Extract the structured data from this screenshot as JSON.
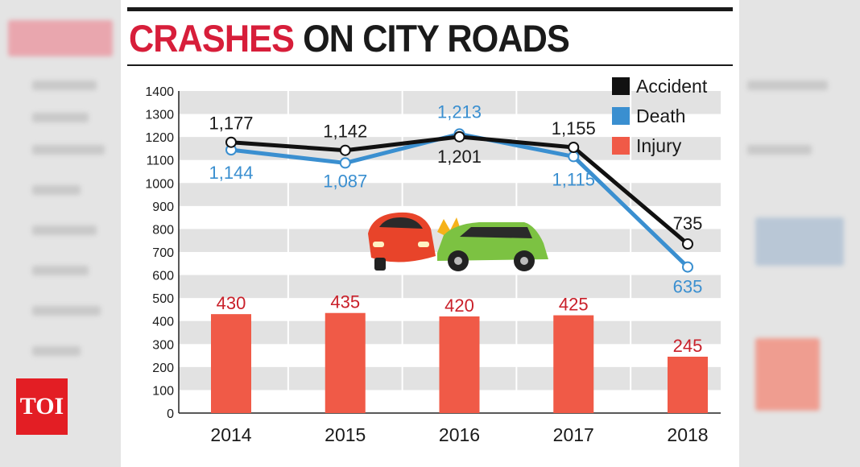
{
  "logo": "TOI",
  "title": {
    "part1": "CRASHES",
    "part2": " ON CITY ROADS"
  },
  "colors": {
    "accident": "#111111",
    "death": "#3a8fd0",
    "injury": "#f05a47",
    "title_red": "#d71e3a"
  },
  "chart_data": {
    "type": "bar+line",
    "title": "CRASHES ON CITY ROADS",
    "categories": [
      "2014",
      "2015",
      "2016",
      "2017",
      "2018"
    ],
    "ylim": [
      0,
      1400
    ],
    "yticks": [
      0,
      100,
      200,
      300,
      400,
      500,
      600,
      700,
      800,
      900,
      1000,
      1100,
      1200,
      1300,
      1400
    ],
    "grid": "horizontal alternating bands",
    "legend_position": "top-right",
    "series": [
      {
        "name": "Accident",
        "kind": "line",
        "values": [
          1177,
          1142,
          1201,
          1155,
          735
        ],
        "labels": [
          "1,177",
          "1,142",
          "1,201",
          "1,155",
          "735"
        ]
      },
      {
        "name": "Death",
        "kind": "line",
        "values": [
          1144,
          1087,
          1213,
          1115,
          635
        ],
        "labels": [
          "1,144",
          "1,087",
          "1,213",
          "1,115",
          "635"
        ]
      },
      {
        "name": "Injury",
        "kind": "bar",
        "values": [
          430,
          435,
          420,
          425,
          245
        ],
        "labels": [
          "430",
          "435",
          "420",
          "425",
          "245"
        ]
      }
    ]
  }
}
